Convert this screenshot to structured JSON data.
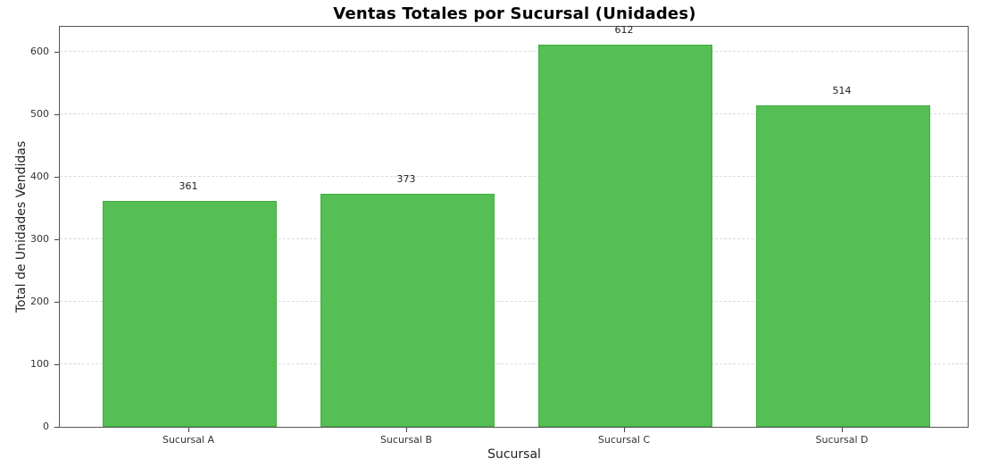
{
  "chart_data": {
    "type": "bar",
    "title": "Ventas Totales por Sucursal (Unidades)",
    "xlabel": "Sucursal",
    "ylabel": "Total de Unidades Vendidas",
    "categories": [
      "Sucursal A",
      "Sucursal B",
      "Sucursal C",
      "Sucursal D"
    ],
    "values": [
      361,
      373,
      612,
      514
    ],
    "value_labels": [
      "361",
      "373",
      "612",
      "514"
    ],
    "ylim": [
      0,
      643
    ],
    "yticks": [
      0,
      100,
      200,
      300,
      400,
      500,
      600
    ],
    "ytick_labels": [
      "0",
      "100",
      "200",
      "300",
      "400",
      "500",
      "600"
    ],
    "grid": "y-dashed",
    "legend": null,
    "bar_color": "#55be55",
    "bar_edge_color": "#3fae3f"
  }
}
